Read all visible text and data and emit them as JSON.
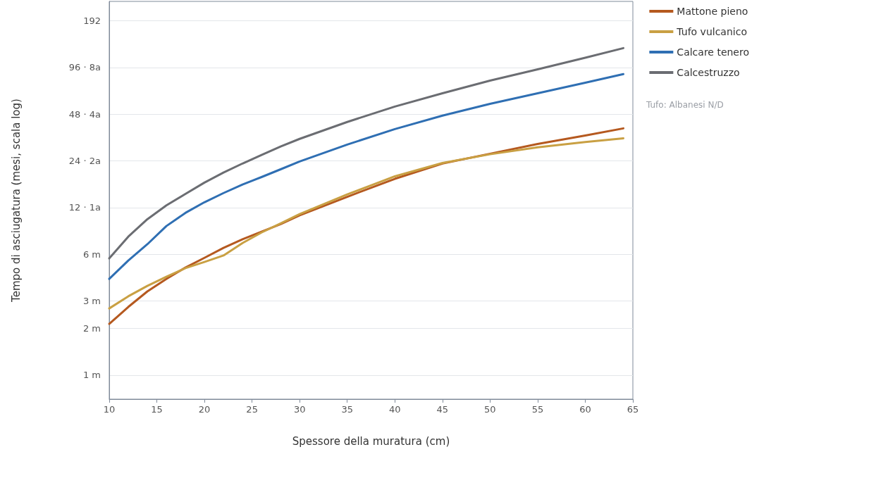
{
  "chart_data": {
    "type": "line",
    "xlabel": "Spessore della muratura (cm)",
    "ylabel": "Tempo di asciugatura (mesi, scala log)",
    "x": [
      10,
      12,
      14,
      16,
      18,
      20,
      22,
      24,
      26,
      28,
      30,
      35,
      40,
      45,
      50,
      55,
      60,
      64
    ],
    "series": [
      {
        "name": "Mattone pieno",
        "color": "#b5591f",
        "values": [
          2.14,
          2.75,
          3.46,
          4.17,
          4.93,
          5.7,
          6.6,
          7.5,
          8.4,
          9.4,
          10.7,
          14.1,
          18.4,
          23.1,
          26.7,
          30.9,
          35.0,
          38.9
        ]
      },
      {
        "name": "Tufo vulcanico",
        "color": "#c9a043",
        "values": [
          2.69,
          3.22,
          3.76,
          4.3,
          4.89,
          5.36,
          5.9,
          7.1,
          8.3,
          9.5,
          10.9,
          14.6,
          19.1,
          23.3,
          26.5,
          29.4,
          31.8,
          33.6
        ]
      },
      {
        "name": "Calcare tenero",
        "color": "#2f6fb3",
        "values": [
          4.17,
          5.47,
          6.97,
          9.13,
          11.1,
          13.0,
          14.9,
          16.9,
          18.9,
          21.2,
          23.8,
          30.6,
          38.5,
          47,
          56,
          65.5,
          76.6,
          87
        ]
      },
      {
        "name": "Calcestruzzo",
        "color": "#6b6d72",
        "values": [
          5.65,
          7.8,
          10.1,
          12.4,
          14.7,
          17.4,
          20.2,
          23.1,
          26.2,
          29.7,
          33.3,
          42.8,
          53.8,
          65.5,
          79,
          93.5,
          111,
          128
        ]
      }
    ],
    "log": "y",
    "xlim": [
      10,
      65
    ],
    "xticks": [
      10,
      15,
      20,
      25,
      30,
      35,
      40,
      45,
      50,
      55,
      60,
      65
    ],
    "ylim": [
      0.7,
      256
    ],
    "yticks": [
      {
        "value": 1,
        "label": "1 m"
      },
      {
        "value": 2,
        "label": "2 m"
      },
      {
        "value": 3,
        "label": "3 m"
      },
      {
        "value": 6,
        "label": "6 m"
      },
      {
        "value": 12,
        "label": "12 · 1a"
      },
      {
        "value": 24,
        "label": "24 · 2a"
      },
      {
        "value": 48,
        "label": "48 · 4a"
      },
      {
        "value": 96,
        "label": "96 · 8a"
      },
      192
    ],
    "grid": "y",
    "legend": "top right",
    "marker": "none",
    "line_style": "solid",
    "annotations": [
      "Tufo: Albanesi N/D"
    ]
  }
}
